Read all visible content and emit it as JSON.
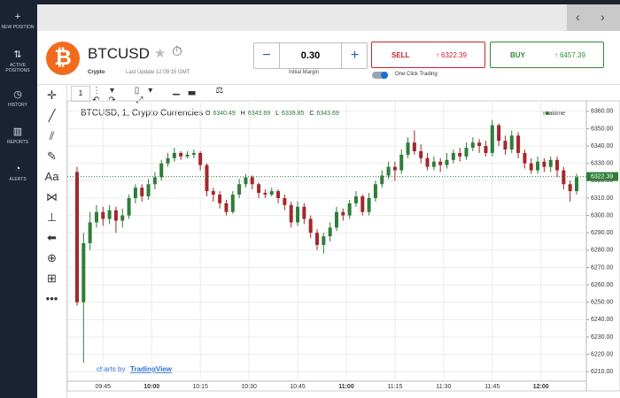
{
  "sidebar": [
    {
      "label": "NEW POSITION"
    },
    {
      "label": "ACTIVE POSITIONS"
    },
    {
      "label": "HISTORY"
    },
    {
      "label": "REPORTS"
    },
    {
      "label": "ALERTS"
    }
  ],
  "instrument": {
    "symbol": "BTCUSD",
    "category": "Crypto",
    "last_update": "Last Update 12:09:15 GMT"
  },
  "trade": {
    "amount": "0.30",
    "amount_label": "Initial Margin",
    "sell_label": "SELL",
    "sell_price": 6322.39,
    "buy_label": "BUY",
    "buy_price": 6457.39,
    "one_click": "One Click Trading"
  },
  "toolbar": {
    "interval": "1"
  },
  "chart_data": {
    "type": "candlestick",
    "title": "BTCUSD, 1, Crypto Currencies",
    "status": "realtime",
    "branding": "charts by",
    "branding_link": "TradingView",
    "ohlc_legend": [
      {
        "label": "O",
        "value": 6340.49
      },
      {
        "label": "H",
        "value": 6343.69
      },
      {
        "label": "L",
        "value": 6339.85
      },
      {
        "label": "C",
        "value": 6343.69
      }
    ],
    "x": [
      577,
      579,
      581,
      583,
      585,
      587,
      589,
      591,
      593,
      595,
      597,
      599,
      601,
      603,
      605,
      607,
      609,
      611,
      613,
      615,
      617,
      619,
      621,
      623,
      625,
      627,
      629,
      631,
      633,
      635,
      637,
      639,
      641,
      643,
      645,
      647,
      649,
      651,
      653,
      655,
      657,
      659,
      661,
      663,
      665,
      667,
      669,
      671,
      673,
      675,
      677,
      679,
      681,
      683,
      685,
      687,
      689,
      691,
      693,
      695,
      697,
      699,
      701,
      703,
      705,
      707,
      709,
      711,
      713,
      715,
      717,
      719,
      721,
      723,
      725,
      727,
      729,
      731
    ],
    "open": [
      6325,
      6250,
      6284,
      6296,
      6302,
      6298,
      6303,
      6297,
      6300,
      6310,
      6316,
      6311,
      6318,
      6322,
      6330,
      6333,
      6336,
      6334,
      6335,
      6336,
      6329,
      6314,
      6312,
      6307,
      6302,
      6312,
      6318,
      6322,
      6318,
      6313,
      6312,
      6314,
      6310,
      6306,
      6296,
      6305,
      6298,
      6290,
      6283,
      6288,
      6293,
      6302,
      6300,
      6307,
      6311,
      6302,
      6310,
      6318,
      6323,
      6328,
      6326,
      6335,
      6342,
      6337,
      6333,
      6328,
      6331,
      6329,
      6332,
      6336,
      6334,
      6339,
      6342,
      6340,
      6336,
      6352,
      6343,
      6338,
      6346,
      6336,
      6330,
      6326,
      6331,
      6328,
      6332,
      6326,
      6318,
      6314
    ],
    "high": [
      6328,
      6290,
      6302,
      6306,
      6305,
      6306,
      6305,
      6304,
      6312,
      6318,
      6318,
      6321,
      6325,
      6332,
      6336,
      6339,
      6337,
      6337,
      6338,
      6337,
      6330,
      6316,
      6314,
      6309,
      6314,
      6321,
      6324,
      6323,
      6319,
      6315,
      6316,
      6315,
      6312,
      6308,
      6308,
      6307,
      6300,
      6292,
      6290,
      6296,
      6305,
      6304,
      6309,
      6314,
      6312,
      6313,
      6320,
      6326,
      6331,
      6331,
      6338,
      6345,
      6349,
      6341,
      6336,
      6334,
      6333,
      6336,
      6338,
      6339,
      6342,
      6345,
      6344,
      6343,
      6355,
      6353,
      6346,
      6349,
      6348,
      6338,
      6333,
      6334,
      6333,
      6334,
      6334,
      6328,
      6320,
      6324
    ],
    "low": [
      6248,
      6215,
      6280,
      6293,
      6294,
      6295,
      6290,
      6293,
      6298,
      6307,
      6308,
      6309,
      6315,
      6320,
      6328,
      6331,
      6332,
      6333,
      6333,
      6326,
      6311,
      6308,
      6304,
      6300,
      6301,
      6310,
      6316,
      6315,
      6310,
      6310,
      6311,
      6307,
      6303,
      6293,
      6294,
      6295,
      6287,
      6280,
      6278,
      6285,
      6291,
      6297,
      6298,
      6305,
      6300,
      6300,
      6308,
      6316,
      6321,
      6320,
      6324,
      6333,
      6335,
      6330,
      6326,
      6326,
      6325,
      6327,
      6330,
      6331,
      6332,
      6337,
      6336,
      6334,
      6334,
      6340,
      6335,
      6336,
      6333,
      6327,
      6324,
      6324,
      6325,
      6325,
      6322,
      6315,
      6308,
      6312
    ],
    "close": [
      6250,
      6284,
      6296,
      6302,
      6298,
      6303,
      6297,
      6300,
      6310,
      6316,
      6311,
      6318,
      6322,
      6330,
      6333,
      6336,
      6334,
      6335,
      6336,
      6329,
      6314,
      6312,
      6307,
      6302,
      6312,
      6318,
      6322,
      6318,
      6313,
      6312,
      6314,
      6310,
      6306,
      6296,
      6305,
      6298,
      6290,
      6283,
      6288,
      6293,
      6302,
      6300,
      6307,
      6311,
      6302,
      6310,
      6318,
      6323,
      6328,
      6326,
      6335,
      6342,
      6337,
      6333,
      6328,
      6331,
      6329,
      6332,
      6336,
      6334,
      6339,
      6342,
      6340,
      6336,
      6352,
      6343,
      6338,
      6346,
      6336,
      6330,
      6326,
      6331,
      6328,
      6332,
      6326,
      6318,
      6314,
      6322
    ],
    "up_color": "#2f7d3a",
    "down_color": "#a3282c",
    "last_price": 6322.39,
    "xlim": [
      574,
      734
    ],
    "xticks": [
      {
        "value": 585,
        "label": "09:45"
      },
      {
        "value": 600,
        "label": "10:00"
      },
      {
        "value": 615,
        "label": "10:15"
      },
      {
        "value": 630,
        "label": "10:30"
      },
      {
        "value": 645,
        "label": "10:45"
      },
      {
        "value": 660,
        "label": "11:00"
      },
      {
        "value": 675,
        "label": "11:15"
      },
      {
        "value": 690,
        "label": "11:30"
      },
      {
        "value": 705,
        "label": "11:45"
      },
      {
        "value": 720,
        "label": "12:00"
      }
    ],
    "ylim": [
      6205,
      6364
    ],
    "yticks": [
      {
        "value": 6210,
        "label": "6210.00"
      },
      {
        "value": 6220,
        "label": "6220.00"
      },
      {
        "value": 6230,
        "label": "6230.00"
      },
      {
        "value": 6240,
        "label": "6240.00"
      },
      {
        "value": 6250,
        "label": "6250.00"
      },
      {
        "value": 6260,
        "label": "6260.00"
      },
      {
        "value": 6270,
        "label": "6270.00"
      },
      {
        "value": 6280,
        "label": "6280.00"
      },
      {
        "value": 6290,
        "label": "6290.00"
      },
      {
        "value": 6300,
        "label": "6300.00"
      },
      {
        "value": 6310,
        "label": "6310.00"
      },
      {
        "value": 6320,
        "label": "6320.00"
      },
      {
        "value": 6330,
        "label": "6330.00"
      },
      {
        "value": 6340,
        "label": "6340.00"
      },
      {
        "value": 6350,
        "label": "6350.00"
      },
      {
        "value": 6360,
        "label": "6360.00"
      }
    ],
    "grid": true
  }
}
